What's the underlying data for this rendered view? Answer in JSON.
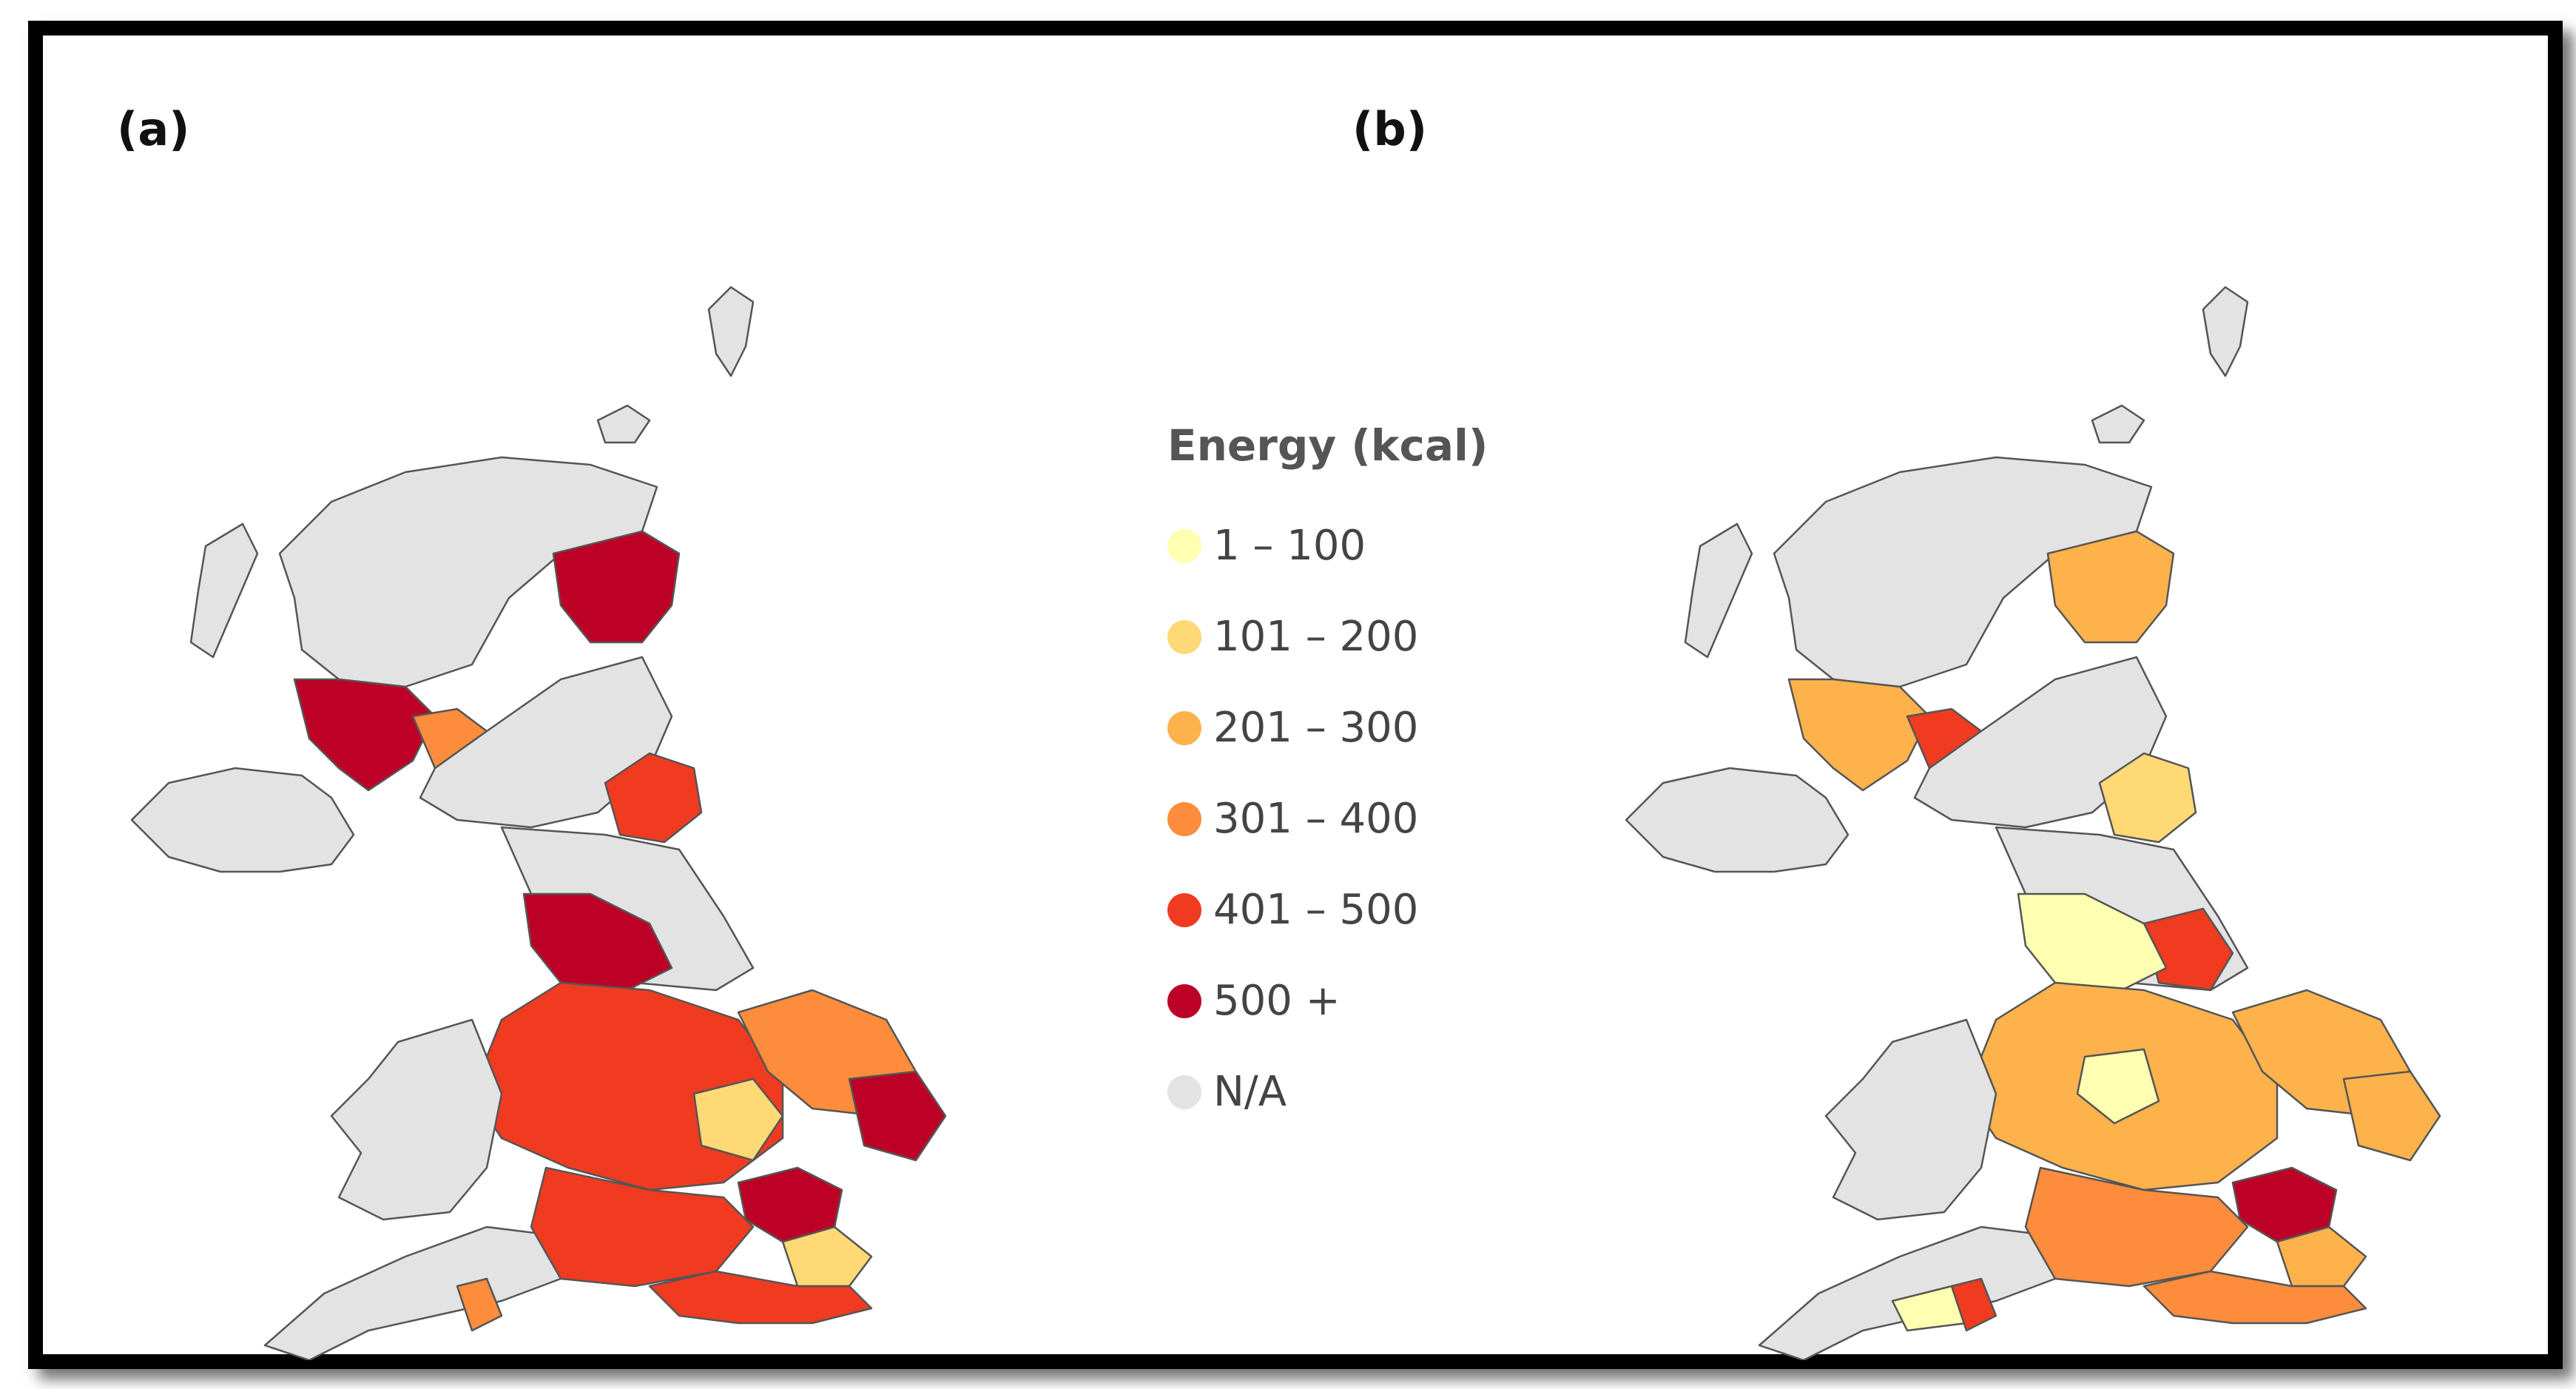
{
  "panels": {
    "a": {
      "label": "(a)"
    },
    "b": {
      "label": "(b)"
    }
  },
  "legend": {
    "title": "Energy (kcal)",
    "items": [
      {
        "label": "1 – 100",
        "color": "#ffffb2"
      },
      {
        "label": "101 – 200",
        "color": "#fed976"
      },
      {
        "label": "201 – 300",
        "color": "#feb24c"
      },
      {
        "label": "301 – 400",
        "color": "#fd8d3c"
      },
      {
        "label": "401 – 500",
        "color": "#f03b20"
      },
      {
        "label": "500 +",
        "color": "#bd0026"
      },
      {
        "label": "N/A",
        "color": "#e3e3e3"
      }
    ]
  },
  "map_colors": {
    "na": "#e3e3e3",
    "border": "#555555"
  }
}
